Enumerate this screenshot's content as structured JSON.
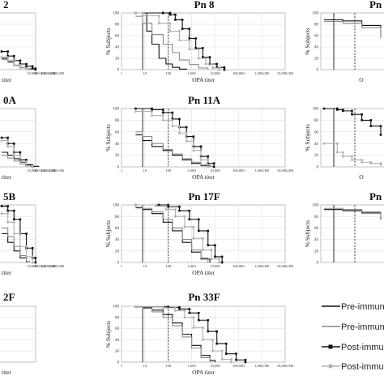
{
  "colors": {
    "black": "#111111",
    "gray": "#8a8a8a",
    "light_gray": "#b0b0b0",
    "grid": "#d9d9d9",
    "frame": "#999999"
  },
  "axis_text": {
    "x_label": "OPA titer",
    "y_label": "% Subjects",
    "short_x_label": "O",
    "cut_x_label": "titer"
  },
  "chart_data": [
    {
      "type": "line",
      "title": "Pn 8",
      "xscale": "log",
      "xlim": [
        1,
        10000000
      ],
      "ylim": [
        0,
        100
      ],
      "xticks": [
        "1",
        "10",
        "100",
        "1,000",
        "10,000",
        "100,000",
        "1,000,000",
        "10,000,000"
      ],
      "yticks": [
        "0",
        "20",
        "40",
        "60",
        "80",
        "100"
      ],
      "xlabel": "OPA titer",
      "ylabel": "% Subjects",
      "vlines": [
        8,
        100
      ],
      "series": [
        {
          "style": "black-line",
          "x": [
            4,
            8,
            12,
            20,
            40,
            80,
            150,
            300,
            600
          ],
          "y": [
            100,
            100,
            68,
            45,
            20,
            10,
            4,
            1,
            0
          ]
        },
        {
          "style": "gray-line",
          "x": [
            4,
            8,
            20,
            60,
            150,
            300,
            800,
            2000,
            5000
          ],
          "y": [
            94,
            82,
            62,
            45,
            30,
            17,
            9,
            3,
            0
          ]
        },
        {
          "style": "black-square",
          "x": [
            4,
            60,
            120,
            200,
            400,
            800,
            1500,
            3000,
            6000,
            12000,
            25000
          ],
          "y": [
            100,
            100,
            97,
            88,
            72,
            55,
            38,
            22,
            10,
            4,
            0
          ]
        },
        {
          "style": "gray-circle",
          "x": [
            4,
            8,
            40,
            120,
            300,
            800,
            2000,
            4000,
            8000,
            15000
          ],
          "y": [
            100,
            95,
            82,
            68,
            52,
            36,
            20,
            10,
            3,
            0
          ]
        }
      ]
    },
    {
      "type": "line",
      "title": "Pn 11A",
      "xscale": "log",
      "xlim": [
        1,
        10000000
      ],
      "ylim": [
        0,
        100
      ],
      "xticks": [
        "1",
        "10",
        "100",
        "1,000",
        "10,000",
        "100,000",
        "1,000,000",
        "10,000,000"
      ],
      "yticks": [
        "0",
        "20",
        "40",
        "60",
        "80",
        "100"
      ],
      "xlabel": "OPA titer",
      "ylabel": "% Subjects",
      "vlines": [
        8,
        100
      ],
      "series": [
        {
          "style": "black-line",
          "x": [
            4,
            8,
            20,
            60,
            150,
            400,
            1000,
            2500,
            6000
          ],
          "y": [
            55,
            45,
            35,
            28,
            20,
            12,
            6,
            2,
            0
          ]
        },
        {
          "style": "gray-line",
          "x": [
            4,
            8,
            20,
            60,
            150,
            400,
            1000,
            2500,
            6000,
            9000
          ],
          "y": [
            60,
            52,
            40,
            30,
            22,
            14,
            8,
            3,
            1,
            0
          ]
        },
        {
          "style": "black-square",
          "x": [
            4,
            20,
            60,
            150,
            300,
            600,
            1200,
            2500,
            5000,
            9000
          ],
          "y": [
            100,
            98,
            93,
            82,
            68,
            52,
            35,
            18,
            6,
            0
          ]
        },
        {
          "style": "gray-circle",
          "x": [
            4,
            20,
            60,
            150,
            300,
            600,
            1200,
            2500,
            5000
          ],
          "y": [
            95,
            88,
            80,
            70,
            58,
            44,
            28,
            12,
            0
          ]
        }
      ]
    },
    {
      "type": "line",
      "title": "Pn 17F",
      "xscale": "log",
      "xlim": [
        1,
        10000000
      ],
      "ylim": [
        0,
        100
      ],
      "xticks": [
        "1",
        "10",
        "100",
        "1,000",
        "10,000",
        "100,000",
        "1,000,000",
        "10,000,000"
      ],
      "yticks": [
        "0",
        "20",
        "40",
        "60",
        "80",
        "100"
      ],
      "xlabel": "OPA titer",
      "ylabel": "% Subjects",
      "vlines": [
        8,
        100
      ],
      "series": [
        {
          "style": "black-line",
          "x": [
            4,
            8,
            20,
            60,
            150,
            400,
            1000,
            2500,
            6000
          ],
          "y": [
            95,
            92,
            85,
            70,
            55,
            35,
            18,
            6,
            0
          ]
        },
        {
          "style": "gray-line",
          "x": [
            4,
            8,
            20,
            60,
            150,
            400,
            1000,
            2500,
            5000
          ],
          "y": [
            96,
            94,
            88,
            75,
            60,
            40,
            22,
            8,
            0
          ]
        },
        {
          "style": "black-square",
          "x": [
            4,
            40,
            100,
            300,
            800,
            2000,
            5000,
            10000,
            20000
          ],
          "y": [
            100,
            100,
            97,
            90,
            75,
            55,
            30,
            10,
            0
          ]
        },
        {
          "style": "gray-circle",
          "x": [
            4,
            30,
            80,
            200,
            500,
            1200,
            3000,
            7000,
            15000
          ],
          "y": [
            100,
            98,
            92,
            80,
            62,
            42,
            22,
            6,
            0
          ]
        }
      ]
    },
    {
      "type": "line",
      "title": "Pn 33F",
      "xscale": "log",
      "xlim": [
        1,
        10000000
      ],
      "ylim": [
        0,
        100
      ],
      "xticks": [
        "1",
        "10",
        "100",
        "1,000",
        "10,000",
        "100,000",
        "1,000,000",
        "10,000,000"
      ],
      "yticks": [
        "0",
        "20",
        "40",
        "60",
        "80",
        "100"
      ],
      "xlabel": "OPA titer",
      "ylabel": "% Subjects",
      "vlines": [
        8,
        100
      ],
      "series": [
        {
          "style": "black-line",
          "x": [
            4,
            8,
            20,
            60,
            150,
            400,
            1000,
            2500,
            6000,
            10000
          ],
          "y": [
            99,
            97,
            93,
            85,
            70,
            50,
            30,
            12,
            3,
            0
          ]
        },
        {
          "style": "gray-line",
          "x": [
            4,
            8,
            20,
            60,
            150,
            400,
            1000,
            2500,
            6000
          ],
          "y": [
            99,
            96,
            90,
            80,
            65,
            45,
            25,
            8,
            0
          ]
        },
        {
          "style": "black-square",
          "x": [
            4,
            100,
            300,
            800,
            2000,
            5000,
            12000,
            30000,
            80000,
            200000
          ],
          "y": [
            99,
            98,
            95,
            88,
            75,
            55,
            33,
            15,
            4,
            0
          ]
        },
        {
          "style": "gray-circle",
          "x": [
            4,
            60,
            200,
            500,
            1200,
            3000,
            8000,
            20000,
            50000
          ],
          "y": [
            99,
            97,
            92,
            80,
            62,
            40,
            20,
            5,
            0
          ]
        }
      ]
    },
    {
      "type": "line",
      "title": "2",
      "partial": true,
      "xticks": [
        "10,000",
        "100,000",
        "1,000,000",
        "10,000,000"
      ],
      "xlabel": "titer",
      "series": [
        {
          "style": "black-line",
          "x": [
            1,
            10,
            100,
            1000,
            10000,
            50000
          ],
          "y": [
            20,
            14,
            8,
            4,
            1,
            0
          ]
        },
        {
          "style": "gray-line",
          "x": [
            1,
            10,
            100,
            1000,
            10000,
            100000
          ],
          "y": [
            18,
            13,
            7,
            4,
            2,
            0
          ]
        },
        {
          "style": "black-square",
          "x": [
            1,
            10,
            100,
            1000,
            10000,
            100000,
            300000
          ],
          "y": [
            32,
            24,
            16,
            10,
            6,
            2,
            0
          ]
        },
        {
          "style": "gray-circle",
          "x": [
            1,
            10,
            100,
            1000,
            10000,
            30000
          ],
          "y": [
            22,
            16,
            8,
            3,
            1,
            0
          ]
        }
      ]
    },
    {
      "type": "line",
      "title": "0A",
      "partial": true,
      "xticks": [
        "10,000",
        "100,000",
        "1,000,000",
        "10,000,000"
      ],
      "xlabel": "titer",
      "series": [
        {
          "style": "black-line",
          "x": [
            1,
            10,
            100,
            1000,
            10000,
            100000,
            1000000
          ],
          "y": [
            25,
            20,
            14,
            8,
            4,
            1,
            0
          ]
        },
        {
          "style": "gray-line",
          "x": [
            1,
            10,
            100,
            1000,
            10000,
            50000
          ],
          "y": [
            20,
            15,
            10,
            5,
            2,
            0
          ]
        },
        {
          "style": "black-square",
          "x": [
            1,
            10,
            100,
            1000,
            10000,
            100000
          ],
          "y": [
            50,
            40,
            25,
            12,
            3,
            0
          ]
        },
        {
          "style": "gray-circle",
          "x": [
            1,
            10,
            100,
            1000,
            10000,
            100000
          ],
          "y": [
            45,
            35,
            20,
            9,
            2,
            0
          ]
        }
      ]
    },
    {
      "type": "line",
      "title": "5B",
      "partial": true,
      "xticks": [
        "10,000",
        "100,000",
        "1,000,000",
        "10,000,000"
      ],
      "xlabel": "titer",
      "series": [
        {
          "style": "black-line",
          "x": [
            1,
            10,
            100,
            1000,
            10000
          ],
          "y": [
            50,
            35,
            20,
            8,
            0
          ]
        },
        {
          "style": "gray-line",
          "x": [
            1,
            10,
            100,
            1000,
            10000,
            30000
          ],
          "y": [
            60,
            45,
            28,
            12,
            2,
            0
          ]
        },
        {
          "style": "black-square",
          "x": [
            1,
            10,
            100,
            1000,
            10000,
            100000,
            300000
          ],
          "y": [
            98,
            90,
            75,
            50,
            25,
            8,
            0
          ]
        },
        {
          "style": "gray-circle",
          "x": [
            1,
            10,
            100,
            1000,
            10000,
            100000
          ],
          "y": [
            85,
            70,
            50,
            28,
            10,
            0
          ]
        }
      ]
    },
    {
      "type": "line",
      "title": "2F",
      "partial": true,
      "xticks": [],
      "xlabel": "titer",
      "series": []
    },
    {
      "type": "line",
      "title": "Pn",
      "partial": true,
      "ylabel": "% Subjects",
      "xlabel": "O",
      "series": [
        {
          "style": "black-line",
          "x": [
            1,
            10,
            100,
            1000
          ],
          "y": [
            88,
            86,
            78,
            60
          ]
        },
        {
          "style": "gray-line",
          "x": [
            1,
            10,
            100,
            1000
          ],
          "y": [
            85,
            82,
            74,
            55
          ]
        }
      ]
    },
    {
      "type": "line",
      "title": "",
      "partial": true,
      "ylabel": "% Subjects",
      "xlabel": "O",
      "series": [
        {
          "style": "black-square",
          "x": [
            1,
            5,
            10,
            30,
            100,
            300,
            1000
          ],
          "y": [
            100,
            98,
            96,
            90,
            80,
            70,
            55
          ]
        },
        {
          "style": "gray-circle",
          "x": [
            1,
            5,
            10,
            30,
            100,
            300,
            1000
          ],
          "y": [
            40,
            25,
            18,
            12,
            8,
            6,
            4
          ]
        }
      ]
    },
    {
      "type": "line",
      "title": "Pn",
      "partial": true,
      "ylabel": "% Subjects",
      "xlabel": "",
      "series": [
        {
          "style": "black-line",
          "x": [
            1,
            10,
            100,
            1000
          ],
          "y": [
            92,
            90,
            86,
            75
          ]
        },
        {
          "style": "gray-line",
          "x": [
            1,
            10,
            100,
            1000
          ],
          "y": [
            94,
            92,
            88,
            78
          ]
        }
      ]
    }
  ],
  "legend": {
    "items": [
      {
        "label": "Pre-immun",
        "style": "black-line"
      },
      {
        "label": "Pre-immun",
        "style": "gray-line"
      },
      {
        "label": "Post-immu",
        "style": "black-square"
      },
      {
        "label": "Post-immu",
        "style": "gray-circle"
      }
    ]
  }
}
